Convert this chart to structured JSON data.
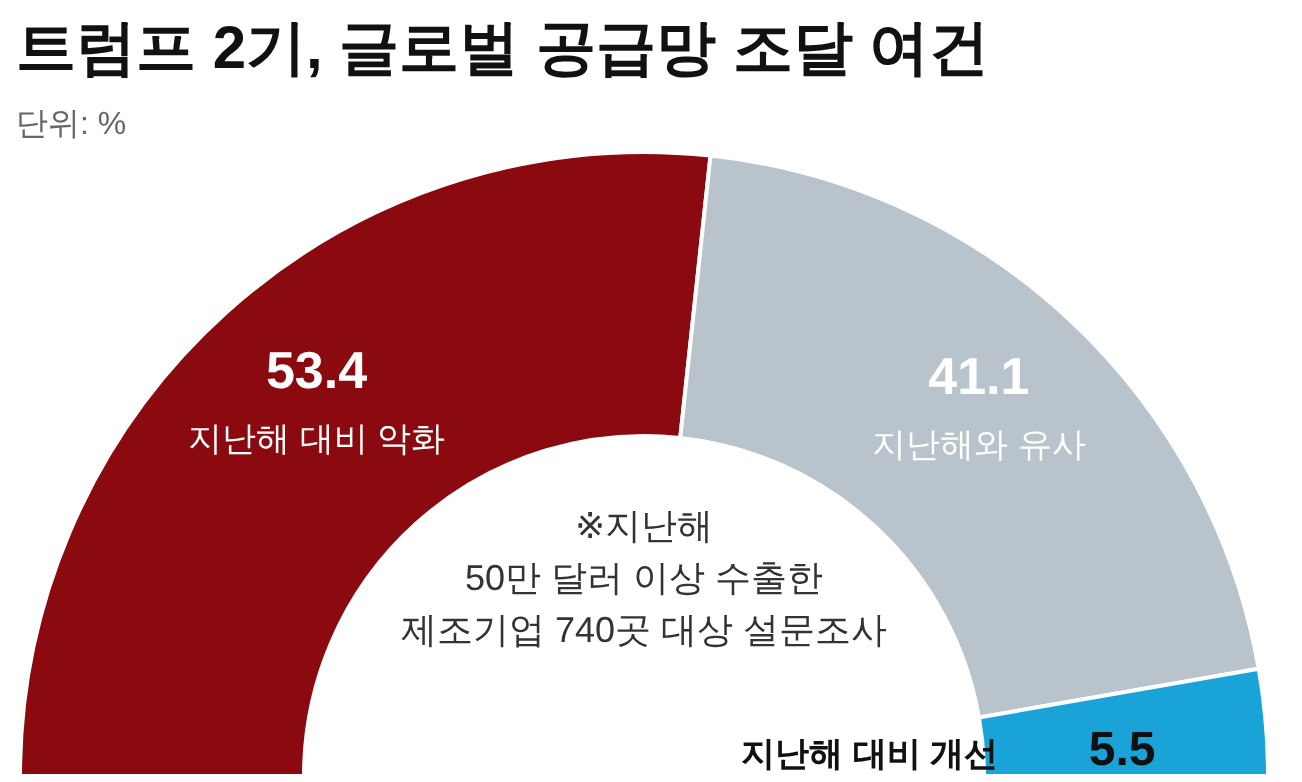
{
  "chart_data": {
    "type": "donut",
    "title": "트럼프 2기, 글로벌 공급망 조달 여건",
    "subtitle": "단위: %",
    "categories": [
      "지난해 대비 악화",
      "지난해와 유사",
      "지난해 대비 개선"
    ],
    "values": [
      53.4,
      41.1,
      5.5
    ],
    "colors": [
      "#8b0a0f",
      "#b9c3cb",
      "#1aa3d6"
    ],
    "data_labels": true,
    "legend": false,
    "annotations": [
      "※지난해\n50만 달러 이상 수출한\n제조기업 740곳 대상 설문조사"
    ]
  }
}
